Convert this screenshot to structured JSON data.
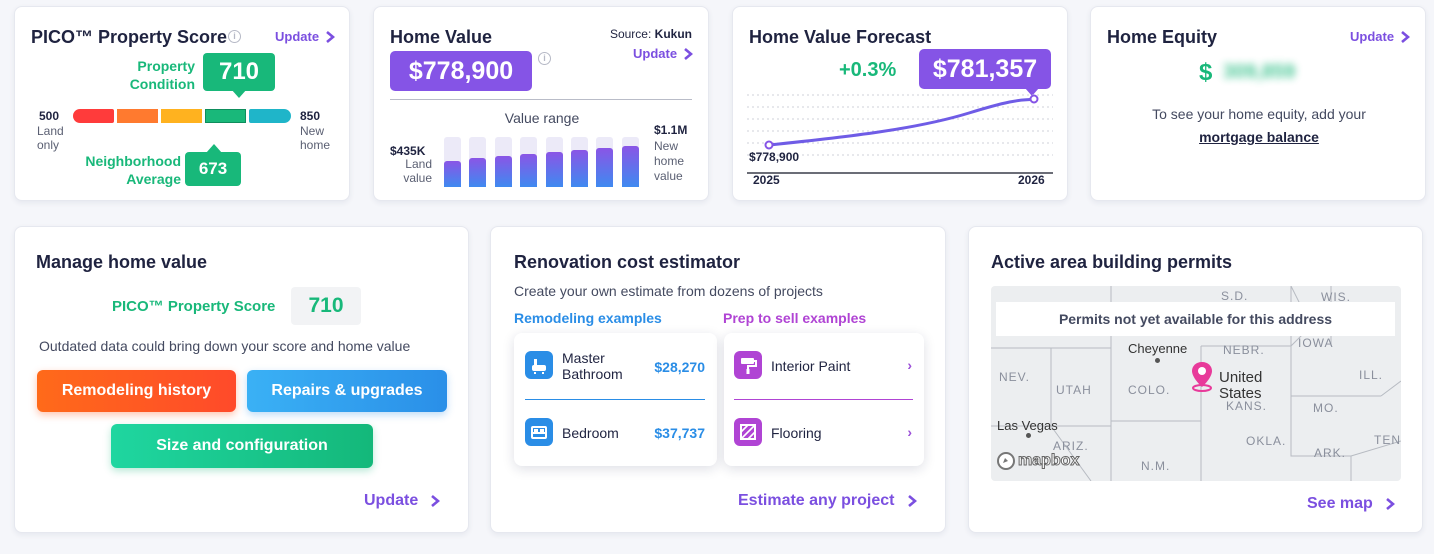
{
  "pico": {
    "title": "PICO™ Property Score",
    "update": "Update",
    "property_condition_label": "Property Condition",
    "property_condition_score": "710",
    "low_value": "500",
    "low_label": "Land only",
    "high_value": "850",
    "high_label": "New home",
    "neighborhood_label": "Neighborhood Average",
    "neighborhood_score": "673",
    "scale_colors": [
      "#ff3b3b",
      "#ff7a2f",
      "#ffb21f",
      "#19b87a",
      "#1fb5c9"
    ]
  },
  "home_value": {
    "title": "Home Value",
    "source_label": "Source:",
    "source_name": "Kukun",
    "update": "Update",
    "value": "$778,900",
    "range_title": "Value range",
    "low_value": "$435K",
    "low_label": "Land value",
    "high_value": "$1.1M",
    "high_label": "New home value",
    "bar_levels": [
      0.52,
      0.58,
      0.62,
      0.66,
      0.7,
      0.74,
      0.78,
      0.83
    ]
  },
  "forecast": {
    "title": "Home Value Forecast",
    "change": "+0.3%",
    "forecast_value": "$781,357",
    "start_value": "$778,900",
    "start_year": "2025",
    "end_year": "2026"
  },
  "equity": {
    "title": "Home Equity",
    "update": "Update",
    "currency": "$",
    "hidden_value": "309,859",
    "message": "To see your home equity, add your",
    "link": "mortgage balance"
  },
  "manage": {
    "title": "Manage home value",
    "score_label": "PICO™ Property Score",
    "score": "710",
    "warning": "Outdated data could bring down your score and home value",
    "btn_remodeling": "Remodeling history",
    "btn_repairs": "Repairs & upgrades",
    "btn_size": "Size and configuration",
    "update": "Update"
  },
  "renovation": {
    "title": "Renovation cost estimator",
    "subtitle": "Create your own estimate from dozens of projects",
    "remodel_heading": "Remodeling examples",
    "prep_heading": "Prep to sell examples",
    "remodel_items": [
      {
        "name": "Master Bathroom",
        "cost": "$28,270"
      },
      {
        "name": "Bedroom",
        "cost": "$37,737"
      }
    ],
    "prep_items": [
      {
        "name": "Interior Paint"
      },
      {
        "name": "Flooring"
      }
    ],
    "cta": "Estimate any project"
  },
  "permits": {
    "title": "Active area building permits",
    "notice": "Permits not yet available for this address",
    "map_labels": {
      "sd": "S.D.",
      "wis": "WIS.",
      "neb": "NEBR.",
      "iowa": "IOWA",
      "nev": "NEV.",
      "utah": "UTAH",
      "colo": "COLO.",
      "ill": "ILL.",
      "kans": "KANS.",
      "mo": "MO.",
      "okla": "OKLA.",
      "nm": "N.M.",
      "ariz": "ARIZ.",
      "ark": "ARK.",
      "tenn": "TENN",
      "cheyenne": "Cheyenne",
      "las_vegas": "Las Vegas",
      "us": "United States"
    },
    "mapbox": "mapbox",
    "see_map": "See map"
  }
}
